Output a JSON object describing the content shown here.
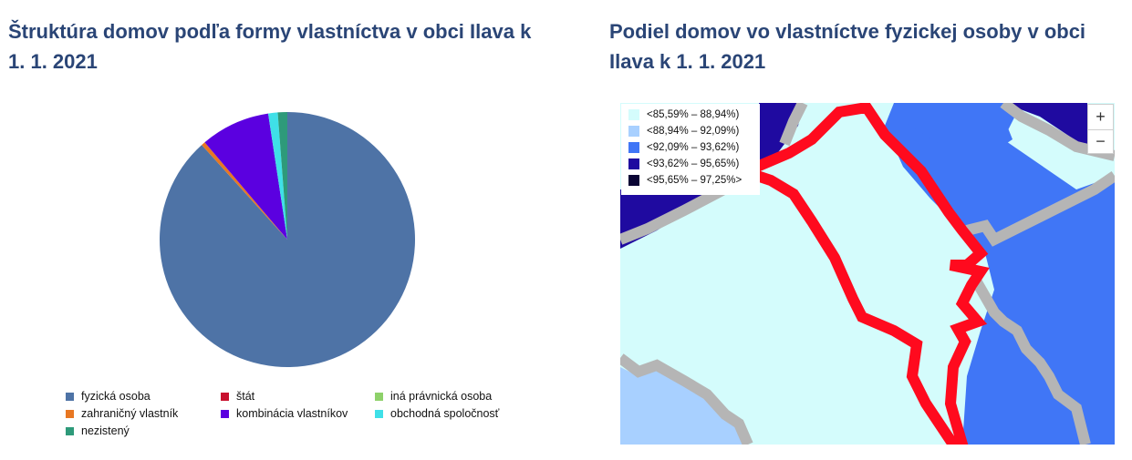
{
  "left": {
    "title": "Štruktúra domov podľa formy vlastníctva v obci Ilava k 1. 1. 2021"
  },
  "right": {
    "title": "Podiel domov vo vlastníctve fyzickej osoby v obci Ilava k 1. 1. 2021"
  },
  "chart_data": [
    {
      "type": "pie",
      "title": "Štruktúra domov podľa formy vlastníctva v obci Ilava k 1. 1. 2021",
      "legend_position": "bottom",
      "slices": [
        {
          "name": "fyzická osoba",
          "value": 88.3,
          "color": "#4e73a6"
        },
        {
          "name": "štát",
          "value": 0.0,
          "color": "#c8102e"
        },
        {
          "name": "iná právnická osoba",
          "value": 0.0,
          "color": "#8ed16a"
        },
        {
          "name": "zahraničný vlastník",
          "value": 0.5,
          "color": "#e87722"
        },
        {
          "name": "kombinácia vlastníkov",
          "value": 8.8,
          "color": "#5b00e0"
        },
        {
          "name": "obchodná spoločnosť",
          "value": 1.2,
          "color": "#3fe0e8"
        },
        {
          "name": "nezistený",
          "value": 1.2,
          "color": "#2e9a7a"
        }
      ]
    }
  ],
  "map": {
    "legend": [
      {
        "label": "<85,59% – 88,94%)",
        "color": "#d4fcfc"
      },
      {
        "label": "<88,94% – 92,09%)",
        "color": "#a8d0ff"
      },
      {
        "label": "<92,09% – 93,62%)",
        "color": "#4076f6"
      },
      {
        "label": "<93,62% – 95,65%)",
        "color": "#1f0aa0"
      },
      {
        "label": "<95,65% – 97,25%>",
        "color": "#0a0535"
      }
    ],
    "zoom_in": "+",
    "zoom_out": "−"
  }
}
